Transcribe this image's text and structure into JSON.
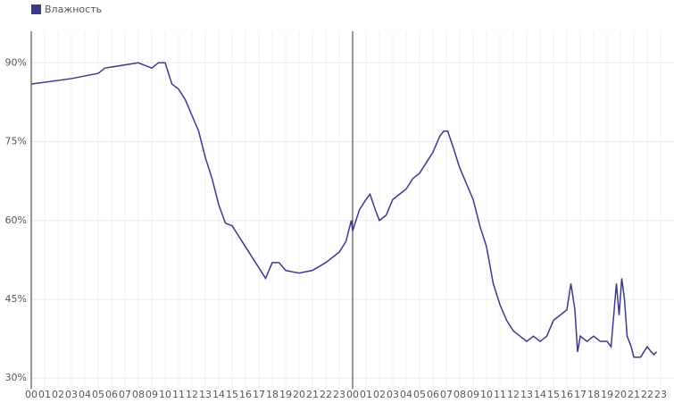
{
  "chart_data": {
    "type": "line",
    "x": [
      0,
      0.1,
      3,
      5,
      5.5,
      8,
      9,
      9.5,
      10,
      10.5,
      11,
      11.5,
      12,
      12.5,
      13,
      13.5,
      14,
      14.5,
      15,
      15.5,
      16,
      16.5,
      17,
      17.5,
      18,
      18.5,
      19,
      20,
      21,
      22,
      23,
      23.5,
      23.9,
      24,
      24.5,
      25,
      25.3,
      25.7,
      26,
      26.5,
      27,
      27.5,
      28,
      28.5,
      29,
      29.5,
      30,
      30.5,
      30.8,
      31.1,
      31.5,
      32,
      32.5,
      33,
      33.5,
      34,
      34.5,
      35,
      35.5,
      36,
      36.5,
      37,
      37.5,
      38,
      38.5,
      39,
      39.5,
      40,
      40.3,
      40.6,
      40.8,
      41,
      41.5,
      42,
      42.5,
      43,
      43.3,
      43.7,
      43.9,
      44.1,
      44.3,
      44.5,
      44.8,
      45,
      45.5,
      46,
      46.3,
      46.5,
      46.7
    ],
    "series": [
      {
        "name": "Влажность",
        "color": "#3a3a8c",
        "values": [
          86,
          86,
          87,
          88,
          89,
          90,
          89,
          90,
          90,
          86,
          85,
          83,
          80,
          77,
          72,
          68,
          63,
          59.5,
          59,
          57,
          55,
          53,
          51,
          49,
          52,
          52,
          50.5,
          50,
          50.5,
          52,
          54,
          56,
          60,
          58,
          62,
          64,
          65,
          62,
          60,
          61,
          64,
          65,
          66,
          68,
          69,
          71,
          73,
          76,
          77,
          77,
          74,
          70,
          67,
          64,
          59,
          55,
          48,
          44,
          41,
          39,
          38,
          37,
          38,
          37,
          38,
          41,
          42,
          43,
          48,
          43,
          35,
          38,
          37,
          38,
          37,
          37,
          36,
          48,
          42,
          49,
          45,
          38,
          36,
          34,
          34,
          36,
          35,
          34.5,
          35
        ]
      }
    ],
    "xlim": [
      0,
      48
    ],
    "xticks": [
      {
        "value": 0,
        "label": "00"
      },
      {
        "value": 1,
        "label": "01"
      },
      {
        "value": 2,
        "label": "02"
      },
      {
        "value": 3,
        "label": "03"
      },
      {
        "value": 4,
        "label": "04"
      },
      {
        "value": 5,
        "label": "05"
      },
      {
        "value": 6,
        "label": "06"
      },
      {
        "value": 7,
        "label": "07"
      },
      {
        "value": 8,
        "label": "08"
      },
      {
        "value": 9,
        "label": "09"
      },
      {
        "value": 10,
        "label": "10"
      },
      {
        "value": 11,
        "label": "11"
      },
      {
        "value": 12,
        "label": "12"
      },
      {
        "value": 13,
        "label": "13"
      },
      {
        "value": 14,
        "label": "14"
      },
      {
        "value": 15,
        "label": "15"
      },
      {
        "value": 16,
        "label": "16"
      },
      {
        "value": 17,
        "label": "17"
      },
      {
        "value": 18,
        "label": "18"
      },
      {
        "value": 19,
        "label": "19"
      },
      {
        "value": 20,
        "label": "20"
      },
      {
        "value": 21,
        "label": "21"
      },
      {
        "value": 22,
        "label": "22"
      },
      {
        "value": 23,
        "label": "23"
      },
      {
        "value": 24,
        "label": "00"
      },
      {
        "value": 25,
        "label": "01"
      },
      {
        "value": 26,
        "label": "02"
      },
      {
        "value": 27,
        "label": "03"
      },
      {
        "value": 28,
        "label": "04"
      },
      {
        "value": 29,
        "label": "05"
      },
      {
        "value": 30,
        "label": "06"
      },
      {
        "value": 31,
        "label": "07"
      },
      {
        "value": 32,
        "label": "08"
      },
      {
        "value": 33,
        "label": "09"
      },
      {
        "value": 34,
        "label": "10"
      },
      {
        "value": 35,
        "label": "11"
      },
      {
        "value": 36,
        "label": "12"
      },
      {
        "value": 37,
        "label": "13"
      },
      {
        "value": 38,
        "label": "14"
      },
      {
        "value": 39,
        "label": "15"
      },
      {
        "value": 40,
        "label": "16"
      },
      {
        "value": 41,
        "label": "17"
      },
      {
        "value": 42,
        "label": "18"
      },
      {
        "value": 43,
        "label": "19"
      },
      {
        "value": 44,
        "label": "20"
      },
      {
        "value": 45,
        "label": "21"
      },
      {
        "value": 46,
        "label": "22"
      },
      {
        "value": 47,
        "label": "23"
      }
    ],
    "ylim": [
      28,
      96
    ],
    "yticks": [
      {
        "value": 30,
        "label": "30%"
      },
      {
        "value": 45,
        "label": "45%"
      },
      {
        "value": 60,
        "label": "60%"
      },
      {
        "value": 75,
        "label": "75%"
      },
      {
        "value": 90,
        "label": "90%"
      }
    ],
    "grid": true
  }
}
